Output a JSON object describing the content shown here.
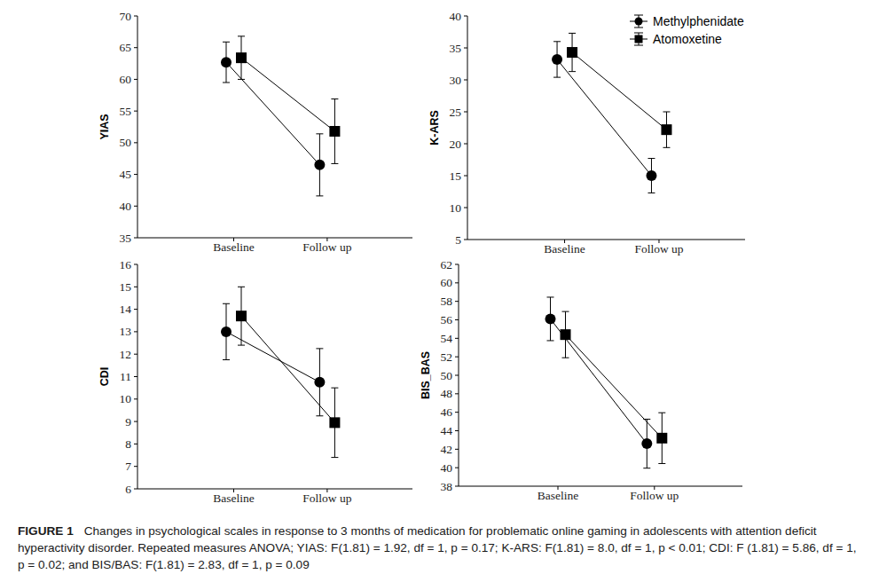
{
  "chart_data": [
    {
      "type": "line",
      "y_label": "YIAS",
      "categories": [
        "Baseline",
        "Follow up"
      ],
      "ylim": [
        35,
        70
      ],
      "yticks": [
        35,
        40,
        45,
        50,
        55,
        60,
        65,
        70
      ],
      "series": [
        {
          "name": "Methylphenidate",
          "color": "#000000",
          "marker": "circle",
          "values": [
            62.7,
            46.5
          ],
          "errors": [
            3.2,
            4.9
          ]
        },
        {
          "name": "Atomoxetine",
          "color": "#000000",
          "marker": "square",
          "values": [
            63.4,
            51.8
          ],
          "errors": [
            3.4,
            5.1
          ]
        }
      ]
    },
    {
      "type": "line",
      "y_label": "K-ARS",
      "categories": [
        "Baseline",
        "Follow up"
      ],
      "ylim": [
        5,
        40
      ],
      "yticks": [
        5,
        10,
        15,
        20,
        25,
        30,
        35,
        40
      ],
      "legend": "upper right",
      "series": [
        {
          "name": "Methylphenidate",
          "color": "#000000",
          "marker": "circle",
          "values": [
            33.2,
            15.0
          ],
          "errors": [
            2.8,
            2.7
          ]
        },
        {
          "name": "Atomoxetine",
          "color": "#000000",
          "marker": "square",
          "values": [
            34.3,
            22.2
          ],
          "errors": [
            3.0,
            2.8
          ]
        }
      ]
    },
    {
      "type": "line",
      "y_label": "CDI",
      "categories": [
        "Baseline",
        "Follow up"
      ],
      "ylim": [
        6,
        16
      ],
      "yticks": [
        6,
        7,
        8,
        9,
        10,
        11,
        12,
        13,
        14,
        15,
        16
      ],
      "series": [
        {
          "name": "Methylphenidate",
          "color": "#000000",
          "marker": "circle",
          "values": [
            13.0,
            10.75
          ],
          "errors": [
            1.25,
            1.5
          ]
        },
        {
          "name": "Atomoxetine",
          "color": "#000000",
          "marker": "square",
          "values": [
            13.7,
            8.95
          ],
          "errors": [
            1.3,
            1.55
          ]
        }
      ]
    },
    {
      "type": "line",
      "y_label": "BIS_BAS",
      "categories": [
        "Baseline",
        "Follow up"
      ],
      "ylim": [
        38,
        62
      ],
      "yticks": [
        38,
        40,
        42,
        44,
        46,
        48,
        50,
        52,
        54,
        56,
        58,
        60,
        62
      ],
      "series": [
        {
          "name": "Methylphenidate",
          "color": "#000000",
          "marker": "circle",
          "values": [
            56.1,
            42.6
          ],
          "errors": [
            2.35,
            2.65
          ]
        },
        {
          "name": "Atomoxetine",
          "color": "#000000",
          "marker": "square",
          "values": [
            54.4,
            43.2
          ],
          "errors": [
            2.5,
            2.75
          ]
        }
      ]
    }
  ],
  "figure_label": "FIGURE 1",
  "caption": "Changes in psychological scales in response to 3 months of medication for problematic online gaming in adolescents with attention deficit hyperactivity disorder. Repeated measures ANOVA; YIAS: F(1.81) = 1.92, df = 1, p = 0.17; K-ARS: F(1.81) = 8.0, df = 1, p < 0.01; CDI: F (1.81) = 5.86, df = 1, p = 0.02; and BIS/BAS: F(1.81) = 2.83, df = 1, p = 0.09"
}
